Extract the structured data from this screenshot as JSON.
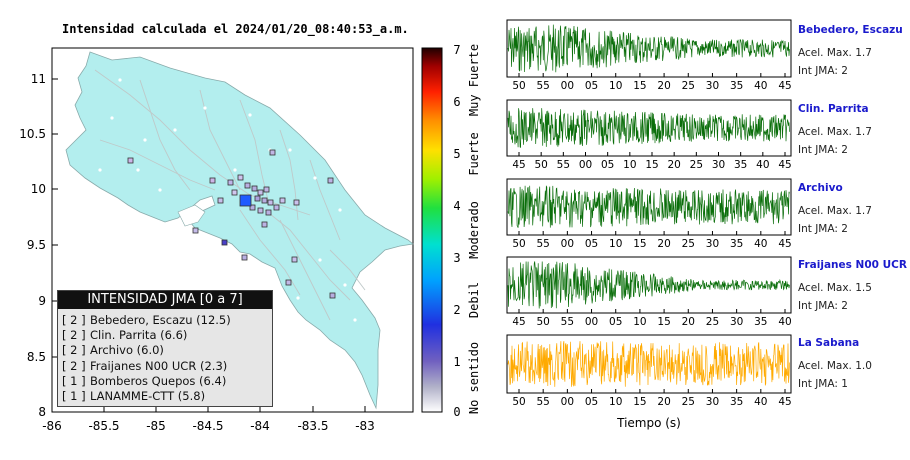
{
  "map": {
    "title": "Intensidad calculada el 2024/01/20_08:40:53_a.m.",
    "y_ticks": [
      "11",
      "10.5",
      "10",
      "9.5",
      "9",
      "8.5",
      "8"
    ],
    "x_ticks": [
      "-86",
      "-85.5",
      "-85",
      "-84.5",
      "-84",
      "-83.5",
      "-83"
    ],
    "land_color": "#b3eeee",
    "epicenter_color": "#1e5bff"
  },
  "legend": {
    "header": "INTENSIDAD JMA [0 a 7]",
    "rows": [
      {
        "level": "[ 2 ]",
        "label": "Bebedero, Escazu (12.5)"
      },
      {
        "level": "[ 2 ]",
        "label": "Clin. Parrita (6.6)"
      },
      {
        "level": "[ 2 ]",
        "label": "Archivo (6.0)"
      },
      {
        "level": "[ 2 ]",
        "label": "Fraijanes N00 UCR (2.3)"
      },
      {
        "level": "[ 1 ]",
        "label": "Bomberos Quepos (6.4)"
      },
      {
        "level": "[ 1 ]",
        "label": "LANAMME-CTT (5.8)"
      }
    ]
  },
  "colorbar": {
    "ticks": [
      "7",
      "6",
      "5",
      "4",
      "3",
      "2",
      "1",
      "0"
    ],
    "labels": [
      "Muy Fuerte",
      "Fuerte",
      "Moderado",
      "Debil",
      "No sentido"
    ]
  },
  "stations": [
    {
      "name": "Bebedero, Escazu",
      "accel": "Acel. Max. 1.7",
      "jma": "Int JMA: 2",
      "ticks": [
        "50",
        "55",
        "00",
        "05",
        "10",
        "15",
        "20",
        "25",
        "30",
        "35",
        "40",
        "45"
      ],
      "color": "#0a6e0a"
    },
    {
      "name": "Clin. Parrita",
      "accel": "Acel. Max. 1.7",
      "jma": "Int JMA: 2",
      "ticks": [
        "45",
        "50",
        "55",
        "00",
        "05",
        "10",
        "15",
        "20",
        "25",
        "30",
        "35",
        "40",
        "45"
      ],
      "color": "#0a6e0a"
    },
    {
      "name": "Archivo",
      "accel": "Acel. Max. 1.7",
      "jma": "Int JMA: 2",
      "ticks": [
        "50",
        "55",
        "00",
        "05",
        "10",
        "15",
        "20",
        "25",
        "30",
        "35",
        "40",
        "45"
      ],
      "color": "#0a6e0a"
    },
    {
      "name": "Fraijanes N00 UCR",
      "accel": "Acel. Max. 1.5",
      "jma": "Int JMA: 2",
      "ticks": [
        "45",
        "50",
        "55",
        "00",
        "05",
        "10",
        "15",
        "20",
        "25",
        "30",
        "35",
        "40"
      ],
      "color": "#0a6e0a"
    },
    {
      "name": "La Sabana",
      "accel": "Acel. Max. 1.0",
      "jma": "Int JMA: 1",
      "ticks": [
        "50",
        "55",
        "00",
        "05",
        "10",
        "15",
        "20",
        "25",
        "30",
        "35",
        "40",
        "45"
      ],
      "color": "#ffaa00"
    }
  ],
  "waveform_xlabel": "Tiempo (s)"
}
